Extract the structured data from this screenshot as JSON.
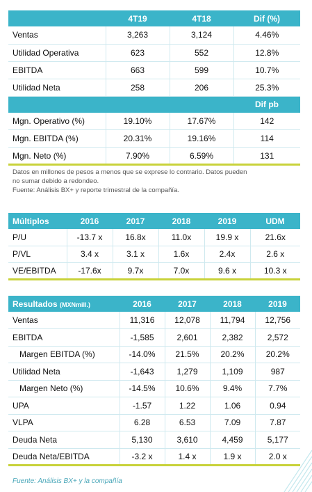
{
  "summary": {
    "headers": [
      "",
      "4T19",
      "4T18",
      "Dif (%)"
    ],
    "rows": [
      {
        "label": "Ventas",
        "v": [
          "3,263",
          "3,124",
          "4.46%"
        ]
      },
      {
        "label": "Utilidad Operativa",
        "v": [
          "623",
          "552",
          "12.8%"
        ]
      },
      {
        "label": "EBITDA",
        "v": [
          "663",
          "599",
          "10.7%"
        ]
      },
      {
        "label": "Utilidad Neta",
        "v": [
          "258",
          "206",
          "25.3%"
        ]
      }
    ],
    "sub_header": "Dif pb",
    "margin_rows": [
      {
        "label": "Mgn. Operativo (%)",
        "v": [
          "19.10%",
          "17.67%",
          "142"
        ]
      },
      {
        "label": "Mgn. EBITDA (%)",
        "v": [
          "20.31%",
          "19.16%",
          "114"
        ]
      },
      {
        "label": "Mgn. Neto (%)",
        "v": [
          "7.90%",
          "6.59%",
          "131"
        ]
      }
    ],
    "note_line1": "Datos en millones de pesos a menos que se exprese lo contrario. Datos pueden",
    "note_line2": "no sumar debido a redondeo.",
    "note_line3": "Fuente: Análisis BX+ y reporte trimestral de la compañía."
  },
  "multiples": {
    "headers": [
      "Múltiplos",
      "2016",
      "2017",
      "2018",
      "2019",
      "UDM"
    ],
    "rows": [
      {
        "label": "P/U",
        "v": [
          "-13.7 x",
          "16.8x",
          "11.0x",
          "19.9 x",
          "21.6x"
        ]
      },
      {
        "label": "P/VL",
        "v": [
          "3.4 x",
          "3.1 x",
          "1.6x",
          "2.4x",
          "2.6 x"
        ]
      },
      {
        "label": "VE/EBITDA",
        "v": [
          "-17.6x",
          "9.7x",
          "7.0x",
          "9.6 x",
          "10.3 x"
        ]
      }
    ]
  },
  "results": {
    "title": "Resultados",
    "title_unit": "(MXNmill.)",
    "headers": [
      "2016",
      "2017",
      "2018",
      "2019"
    ],
    "rows": [
      {
        "label": "Ventas",
        "v": [
          "11,316",
          "12,078",
          "11,794",
          "12,756"
        ]
      },
      {
        "label": "EBITDA",
        "v": [
          "-1,585",
          "2,601",
          "2,382",
          "2,572"
        ]
      },
      {
        "label": "Margen EBITDA (%)",
        "v": [
          "-14.0%",
          "21.5%",
          "20.2%",
          "20.2%"
        ],
        "indent": true
      },
      {
        "label": "Utilidad Neta",
        "v": [
          "-1,643",
          "1,279",
          "1,109",
          "987"
        ]
      },
      {
        "label": "Margen Neto (%)",
        "v": [
          "-14.5%",
          "10.6%",
          "9.4%",
          "7.7%"
        ],
        "indent": true
      },
      {
        "label": "UPA",
        "v": [
          "-1.57",
          "1.22",
          "1.06",
          "0.94"
        ]
      },
      {
        "label": "VLPA",
        "v": [
          "6.28",
          "6.53",
          "7.09",
          "7.87"
        ]
      },
      {
        "label": "Deuda Neta",
        "v": [
          "5,130",
          "3,610",
          "4,459",
          "5,177"
        ]
      },
      {
        "label": "Deuda Neta/EBITDA",
        "v": [
          "-3.2 x",
          "1.4 x",
          "1.9 x",
          "2.0 x"
        ]
      }
    ],
    "source": "Fuente: Análisis BX+ y la compañía"
  },
  "colors": {
    "accent": "#3bb4c9",
    "line": "#c8d23a"
  }
}
